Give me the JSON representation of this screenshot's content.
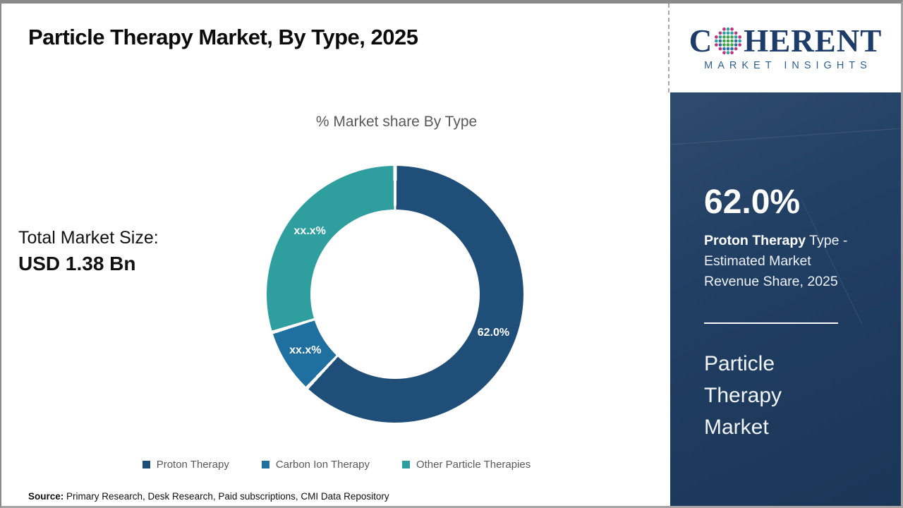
{
  "header": {
    "title": "Particle Therapy Market, By Type, 2025"
  },
  "left_panel": {
    "total_label": "Total Market Size:",
    "total_value": "USD 1.38 Bn"
  },
  "chart_data": {
    "type": "donut",
    "title": "% Market share By Type",
    "legend_position": "bottom",
    "segments": [
      {
        "name": "Proton Therapy",
        "label": "62.0%",
        "value": "62.0",
        "display_value": 62.0,
        "color": "#1f4e79"
      },
      {
        "name": "Carbon Ion Therapy",
        "label": "xx.x%",
        "value": "xx.x",
        "display_value": 8.2,
        "color": "#1f6fa0"
      },
      {
        "name": "Other Particle Therapies",
        "label": "xx.x%",
        "value": "xx.x",
        "display_value": 29.8,
        "color": "#2f9e9e"
      }
    ]
  },
  "sidebar": {
    "logo": {
      "brand_c": "C",
      "brand_rest": "HERENT",
      "subtitle": "MARKET INSIGHTS",
      "dot_colors": {
        "outer_pink": "#c0337f",
        "outer_teal": "#2f9e9e",
        "mid_blue": "#2d6fa8",
        "inner_green": "#46a24c"
      }
    },
    "stat_value": "62.0%",
    "stat_bold": "Proton Therapy",
    "stat_rest": " Type - Estimated Market Revenue Share, 2025",
    "market_name": "Particle Therapy Market"
  },
  "footer": {
    "source_label": "Source:",
    "source_text": " Primary Research, Desk Research, Paid subscriptions, CMI Data Repository"
  }
}
